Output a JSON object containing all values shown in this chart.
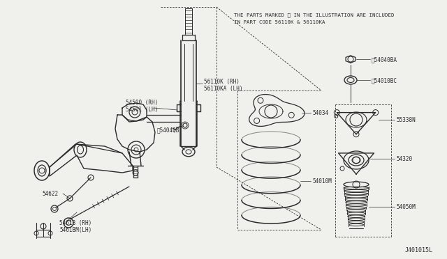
{
  "bg_color": "#f0f0ec",
  "line_color": "#2a2a2a",
  "title_note1": "THE PARTS MARKED ※ IN THE ILLUSTRATION ARE INCLUDED",
  "title_note2": "IN PART CODE 56110K & 56110KA",
  "diagram_code": "J401015L",
  "figsize": [
    6.4,
    3.72
  ],
  "dpi": 100
}
